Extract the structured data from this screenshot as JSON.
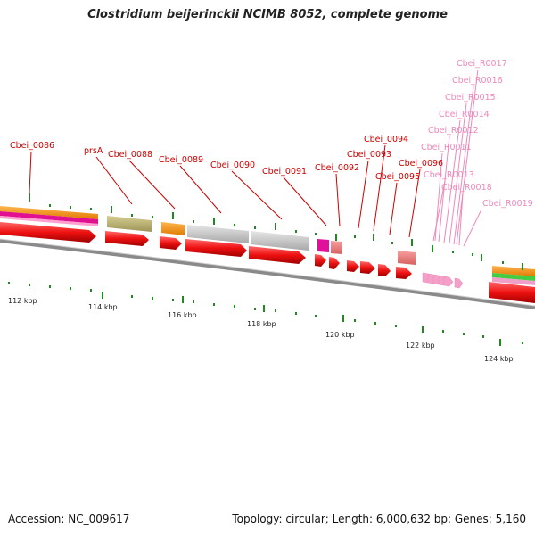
{
  "title": "Clostridium beijerinckii NCIMB 8052, complete genome",
  "footer": {
    "accession": "Accession: NC_009617",
    "summary": "Topology: circular; Length: 6,000,632 bp; Genes: 5,160"
  },
  "scale_labels": [
    "112 kbp",
    "114 kbp",
    "116 kbp",
    "118 kbp",
    "120 kbp",
    "122 kbp",
    "124 kbp"
  ],
  "gene_labels": [
    {
      "text": "Cbei_0086",
      "color": "#cc0000"
    },
    {
      "text": "prsA",
      "color": "#cc0000"
    },
    {
      "text": "Cbei_0088",
      "color": "#cc0000"
    },
    {
      "text": "Cbei_0089",
      "color": "#cc0000"
    },
    {
      "text": "Cbei_0090",
      "color": "#cc0000"
    },
    {
      "text": "Cbei_0091",
      "color": "#cc0000"
    },
    {
      "text": "Cbei_0092",
      "color": "#cc0000"
    },
    {
      "text": "Cbei_0093",
      "color": "#cc0000"
    },
    {
      "text": "Cbei_0094",
      "color": "#cc0000"
    },
    {
      "text": "Cbei_0095",
      "color": "#cc0000"
    },
    {
      "text": "Cbei_0096",
      "color": "#cc0000"
    },
    {
      "text": "Cbei_R0017",
      "color": "#ee88bb"
    },
    {
      "text": "Cbei_R0016",
      "color": "#ee88bb"
    },
    {
      "text": "Cbei_R0015",
      "color": "#ee88bb"
    },
    {
      "text": "Cbei_R0014",
      "color": "#ee88bb"
    },
    {
      "text": "Cbei_R0012",
      "color": "#ee88bb"
    },
    {
      "text": "Cbei_R0011",
      "color": "#ee88bb"
    },
    {
      "text": "Cbei_R0013",
      "color": "#ee88bb"
    },
    {
      "text": "Cbei_R0018",
      "color": "#ee88bb"
    },
    {
      "text": "Cbei_R0019",
      "color": "#ee88bb"
    }
  ],
  "colors": {
    "cds": "#ee1111",
    "rna": "#f4a0c8",
    "orange": "#ff9922",
    "khaki": "#c2b878",
    "grey": "#c8c8c8",
    "magenta": "#e0109a",
    "salmon": "#f08080",
    "green": "#44cc44",
    "tick_green": "#228822",
    "backbone": "#888888"
  }
}
